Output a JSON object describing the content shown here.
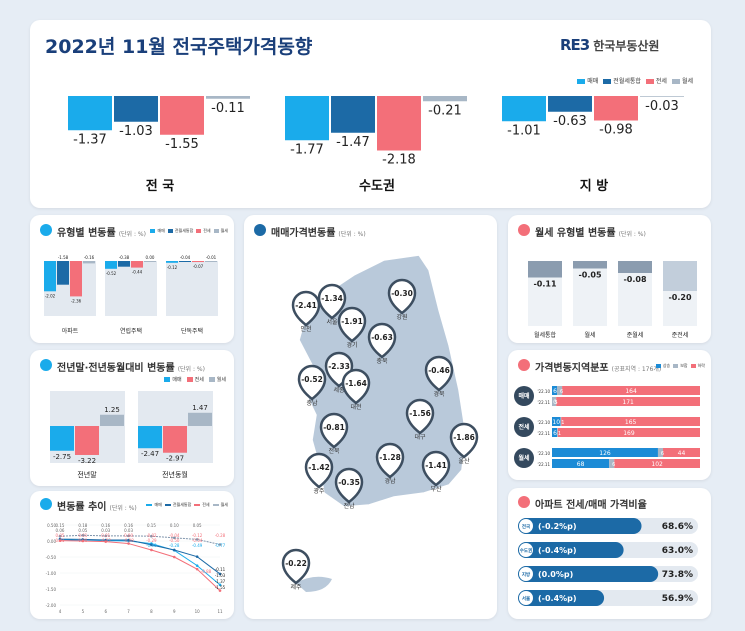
{
  "title": "2022년 11월 전국주택가격동향",
  "logo_mark": "RE3",
  "logo_text": "한국부동산원",
  "colors": {
    "sale": "#1aabeb",
    "combined": "#1c6aa6",
    "jeonse": "#f36f79",
    "wolse": "#a8b7c6"
  },
  "legend": [
    "매매",
    "전월세통합",
    "전세",
    "월세"
  ],
  "top": {
    "groups": [
      {
        "label": "전 국",
        "labels": [
          "-1.37",
          "-1.03",
          "-1.55",
          "-0.11"
        ]
      },
      {
        "label": "수도권",
        "labels": [
          "-1.77",
          "-1.47",
          "-2.18",
          "-0.21"
        ]
      },
      {
        "label": "지 방",
        "labels": [
          "-1.01",
          "-0.63",
          "-0.98",
          "-0.03"
        ]
      }
    ]
  },
  "type_panel": {
    "title": "유형별 변동률",
    "unit": "(단위 : %)",
    "groups": [
      {
        "label": "아파트",
        "labels": [
          "-2.02",
          "-1.58",
          "-2.36",
          "-0.16"
        ]
      },
      {
        "label": "연립주택",
        "labels": [
          "-0.52",
          "-0.38",
          "-0.44",
          "0.00"
        ]
      },
      {
        "label": "단독주택",
        "labels": [
          "-0.12",
          "-0.04",
          "-0.07",
          "-0.01"
        ]
      }
    ]
  },
  "yoy_panel": {
    "title": "전년말·전년동월대비 변동률",
    "unit": "(단위 : %)",
    "legend": [
      "매매",
      "전세",
      "월세"
    ],
    "groups": [
      {
        "label": "전년말",
        "labels": [
          "-2.75",
          "-3.22",
          "1.25"
        ]
      },
      {
        "label": "전년동월",
        "labels": [
          "-2.47",
          "-2.97",
          "1.47"
        ]
      }
    ]
  },
  "trend_panel": {
    "title": "변동률 추이",
    "unit": "(단위 : %)",
    "yticks": [
      "0.50",
      "0.00",
      "-0.50",
      "-1.00",
      "-1.50",
      "-2.00"
    ],
    "xticks": [
      "4",
      "5",
      "6",
      "7",
      "8",
      "9",
      "10",
      "11"
    ],
    "row1": [
      "0.15",
      "0.18",
      "0.16",
      "0.16",
      "0.15",
      "0.10",
      "0.05"
    ],
    "row2": [
      "0.06",
      "0.05",
      "0.03",
      "0.03",
      "",
      "",
      ""
    ],
    "row3": [
      "0.05",
      "0.01",
      "0.01",
      "0.00",
      "-0.02",
      "-0.04",
      "-0.12",
      "-0.28"
    ],
    "row4": [
      "0.01",
      "0.00",
      "-0.02",
      "-0.08",
      "-0.29",
      "-0.50",
      "-0.54"
    ],
    "row5": [
      "-0.08",
      "-0.28",
      "-0.49",
      "-0.77"
    ],
    "row6": [
      "-0.11",
      "-1.03",
      "-1.37",
      "-1.55"
    ],
    "row7": [
      "-0.88"
    ]
  },
  "map_panel": {
    "title": "매매가격변동률",
    "unit": "(단위 : %)",
    "regions": [
      {
        "value": "-2.41",
        "name": "인천"
      },
      {
        "value": "-1.34",
        "name": "서울"
      },
      {
        "value": "-1.91",
        "name": "경기"
      },
      {
        "value": "-0.30",
        "name": "강원"
      },
      {
        "value": "-0.63",
        "name": "충북"
      },
      {
        "value": "-2.33",
        "name": "세종"
      },
      {
        "value": "-0.52",
        "name": "충남"
      },
      {
        "value": "-1.64",
        "name": "대전"
      },
      {
        "value": "-0.46",
        "name": "경북"
      },
      {
        "value": "-1.56",
        "name": "대구"
      },
      {
        "value": "-0.81",
        "name": "전북"
      },
      {
        "value": "-1.86",
        "name": "울산"
      },
      {
        "value": "-1.28",
        "name": "경남"
      },
      {
        "value": "-1.41",
        "name": "부산"
      },
      {
        "value": "-1.42",
        "name": "광주"
      },
      {
        "value": "-0.35",
        "name": "전남"
      },
      {
        "value": "-0.22",
        "name": "제주"
      }
    ]
  },
  "wolse_panel": {
    "title": "월세 유형별 변동률",
    "unit": "(단위 : %)",
    "items": [
      {
        "label": "월세통합",
        "value": "-0.11"
      },
      {
        "label": "월세",
        "value": "-0.05"
      },
      {
        "label": "준월세",
        "value": "-0.08"
      },
      {
        "label": "준전세",
        "value": "-0.20"
      }
    ]
  },
  "dist_panel": {
    "title": "가격변동지역분포",
    "unit": "(공표지역 : 176개)",
    "legend": [
      "상승",
      "보합",
      "하락"
    ],
    "groups": [
      {
        "label": "매매",
        "rows": [
          {
            "month": "'22.10",
            "up": "6",
            "flat": "6",
            "down": "164"
          },
          {
            "month": "'22.11",
            "up": "0",
            "flat": "5",
            "down": "171"
          }
        ]
      },
      {
        "label": "전세",
        "rows": [
          {
            "month": "'22.10",
            "up": "10",
            "flat": "1",
            "down": "165"
          },
          {
            "month": "'22.11",
            "up": "6",
            "flat": "1",
            "down": "169"
          }
        ]
      },
      {
        "label": "월세",
        "rows": [
          {
            "month": "'22.10",
            "up": "126",
            "flat": "6",
            "down": "44"
          },
          {
            "month": "'22.11",
            "up": "68",
            "flat": "6",
            "down": "102"
          }
        ]
      }
    ]
  },
  "ratio_panel": {
    "title": "아파트 전세/매매 가격비율",
    "items": [
      {
        "region": "전국",
        "change": "(-0.2%p)",
        "value": "68.6%"
      },
      {
        "region": "수도권",
        "change": "(-0.4%p)",
        "value": "63.0%"
      },
      {
        "region": "지방",
        "change": "(0.0%p)",
        "value": "73.8%"
      },
      {
        "region": "서울",
        "change": "(-0.4%p)",
        "value": "56.9%"
      }
    ]
  },
  "chart_data": [
    {
      "type": "bar",
      "title": "2022년 11월 전국주택가격동향",
      "categories": [
        "전 국",
        "수도권",
        "지 방"
      ],
      "series": [
        {
          "name": "매매",
          "values": [
            -1.37,
            -1.77,
            -1.01
          ]
        },
        {
          "name": "전월세통합",
          "values": [
            -1.03,
            -1.47,
            -0.63
          ]
        },
        {
          "name": "전세",
          "values": [
            -1.55,
            -2.18,
            -0.98
          ]
        },
        {
          "name": "월세",
          "values": [
            -0.11,
            -0.21,
            -0.03
          ]
        }
      ]
    },
    {
      "type": "bar",
      "title": "유형별 변동률",
      "categories": [
        "아파트",
        "연립주택",
        "단독주택"
      ],
      "series": [
        {
          "name": "매매",
          "values": [
            -2.02,
            -0.52,
            -0.12
          ]
        },
        {
          "name": "전월세통합",
          "values": [
            -1.58,
            -0.38,
            -0.04
          ]
        },
        {
          "name": "전세",
          "values": [
            -2.36,
            -0.44,
            -0.07
          ]
        },
        {
          "name": "월세",
          "values": [
            -0.16,
            0.0,
            -0.01
          ]
        }
      ]
    },
    {
      "type": "bar",
      "title": "전년말·전년동월대비 변동률",
      "categories": [
        "전년말",
        "전년동월"
      ],
      "series": [
        {
          "name": "매매",
          "values": [
            -2.75,
            -2.47
          ]
        },
        {
          "name": "전세",
          "values": [
            -3.22,
            -2.97
          ]
        },
        {
          "name": "월세",
          "values": [
            1.25,
            1.47
          ]
        }
      ]
    },
    {
      "type": "line",
      "title": "변동률 추이",
      "x": [
        4,
        5,
        6,
        7,
        8,
        9,
        10,
        11
      ],
      "ylim": [
        -2.0,
        0.5
      ],
      "series": [
        {
          "name": "매매",
          "values": [
            0.05,
            0.01,
            0.01,
            0.0,
            -0.08,
            -0.29,
            -0.77,
            -1.37
          ]
        },
        {
          "name": "전월세통합",
          "values": [
            0.06,
            0.05,
            0.03,
            0.03,
            -0.12,
            -0.28,
            -0.49,
            -1.03
          ]
        },
        {
          "name": "전세",
          "values": [
            0.01,
            0.0,
            -0.02,
            -0.08,
            -0.28,
            -0.5,
            -0.88,
            -1.55
          ]
        },
        {
          "name": "월세",
          "values": [
            0.15,
            0.18,
            0.16,
            0.16,
            0.15,
            0.1,
            0.05,
            -0.11
          ]
        }
      ]
    },
    {
      "type": "bar",
      "title": "월세 유형별 변동률",
      "categories": [
        "월세통합",
        "월세",
        "준월세",
        "준전세"
      ],
      "values": [
        -0.11,
        -0.05,
        -0.08,
        -0.2
      ]
    },
    {
      "type": "bar",
      "title": "가격변동지역분포",
      "categories": [
        "매매 '22.10",
        "매매 '22.11",
        "전세 '22.10",
        "전세 '22.11",
        "월세 '22.10",
        "월세 '22.11"
      ],
      "series": [
        {
          "name": "상승",
          "values": [
            6,
            0,
            10,
            6,
            126,
            68
          ]
        },
        {
          "name": "보합",
          "values": [
            6,
            5,
            1,
            1,
            6,
            6
          ]
        },
        {
          "name": "하락",
          "values": [
            164,
            171,
            165,
            169,
            44,
            102
          ]
        }
      ]
    },
    {
      "type": "bar",
      "title": "아파트 전세/매매 가격비율",
      "categories": [
        "전국",
        "수도권",
        "지방",
        "서울"
      ],
      "values": [
        68.6,
        63.0,
        73.8,
        56.9
      ]
    }
  ]
}
